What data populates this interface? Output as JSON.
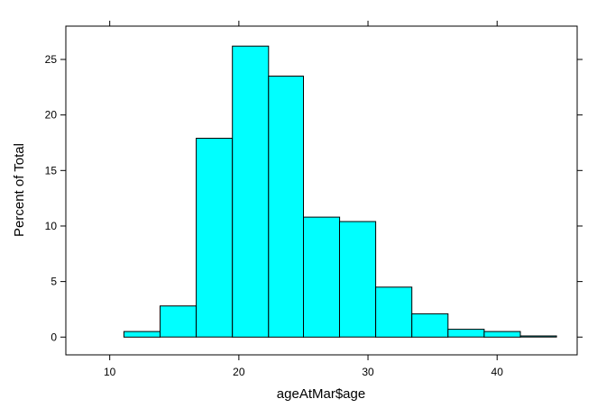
{
  "chart_data": {
    "type": "bar",
    "subtype": "histogram",
    "xlabel": "ageAtMar$age",
    "ylabel": "Percent of Total",
    "xlim": [
      6.6,
      46.2
    ],
    "ylim": [
      -1.6,
      28.0
    ],
    "x_ticks": [
      10,
      20,
      30,
      40
    ],
    "y_ticks": [
      0,
      5,
      10,
      15,
      20,
      25
    ],
    "bins": [
      {
        "start": 8.3,
        "end": 11.1,
        "value": 0.0
      },
      {
        "start": 11.1,
        "end": 13.9,
        "value": 0.5
      },
      {
        "start": 13.9,
        "end": 16.7,
        "value": 2.8
      },
      {
        "start": 16.7,
        "end": 19.5,
        "value": 17.9
      },
      {
        "start": 19.5,
        "end": 22.3,
        "value": 26.2
      },
      {
        "start": 22.3,
        "end": 25.0,
        "value": 23.5
      },
      {
        "start": 25.0,
        "end": 27.8,
        "value": 10.8
      },
      {
        "start": 27.8,
        "end": 30.6,
        "value": 10.4
      },
      {
        "start": 30.6,
        "end": 33.4,
        "value": 4.5
      },
      {
        "start": 33.4,
        "end": 36.2,
        "value": 2.1
      },
      {
        "start": 36.2,
        "end": 39.0,
        "value": 0.7
      },
      {
        "start": 39.0,
        "end": 41.8,
        "value": 0.5
      },
      {
        "start": 41.8,
        "end": 44.6,
        "value": 0.1
      }
    ],
    "fill_color": "#00ffff",
    "stroke_color": "#000000",
    "grid": false,
    "legend": "none"
  }
}
